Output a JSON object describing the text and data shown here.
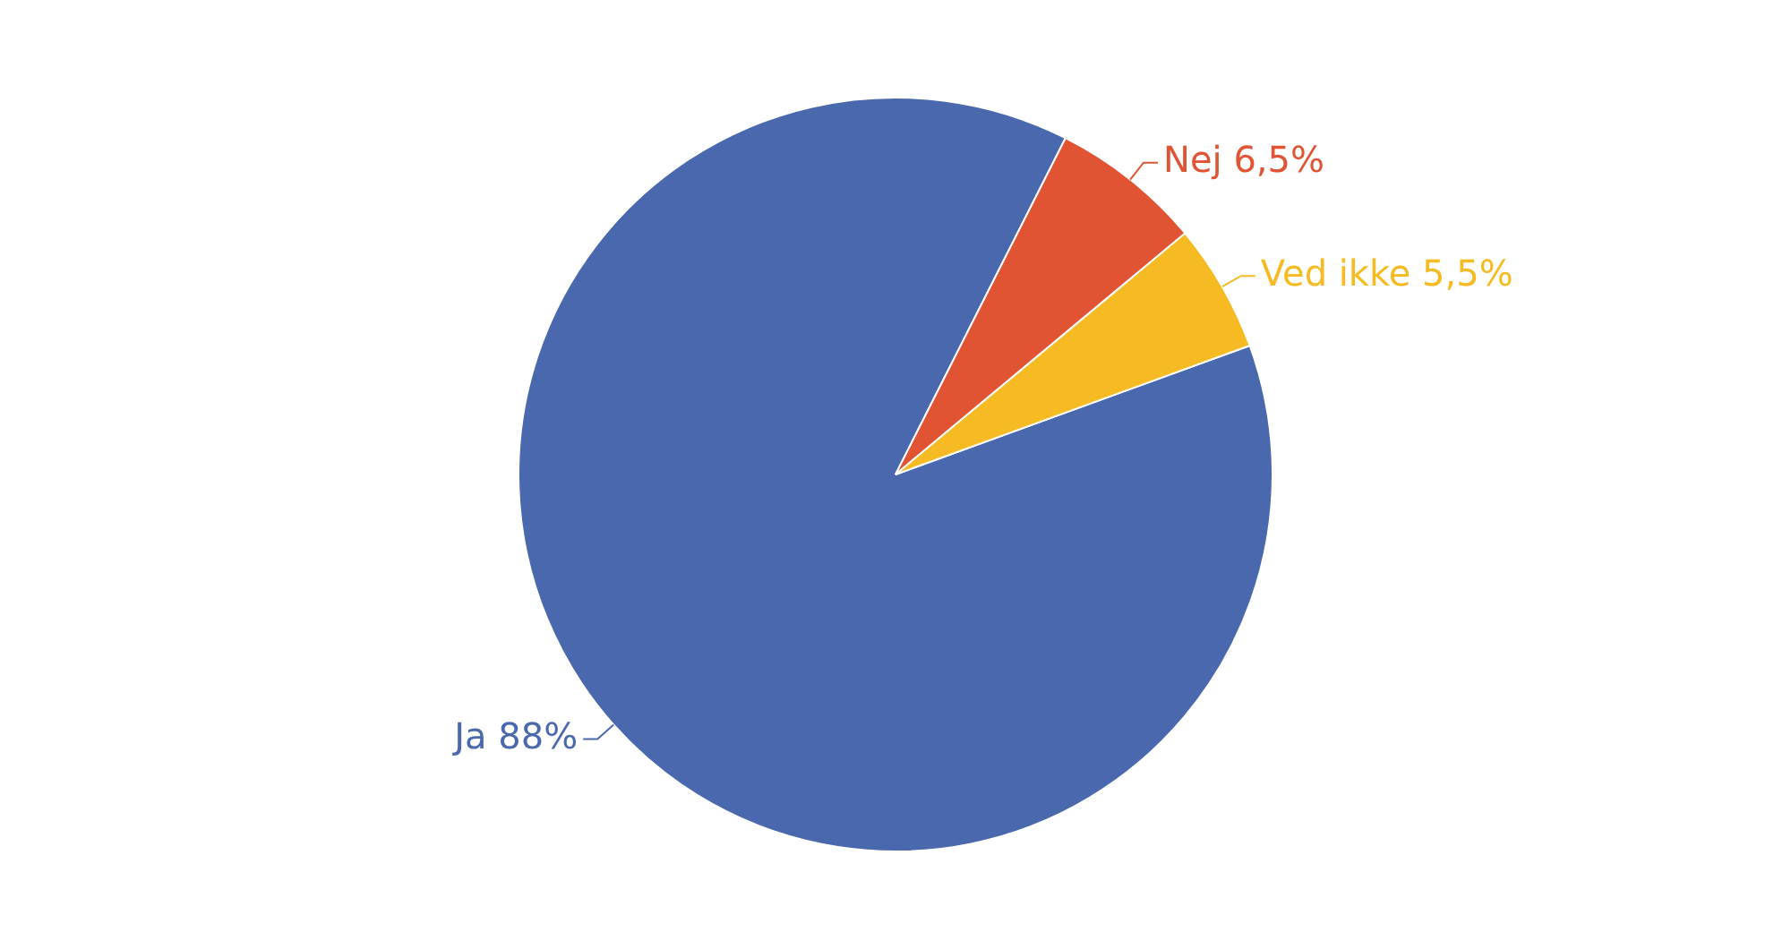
{
  "chart_data": {
    "type": "pie",
    "categories": [
      "Ja",
      "Nej",
      "Ved ikke"
    ],
    "values": [
      88,
      6.5,
      5.5
    ],
    "value_labels": [
      "88%",
      "6,5%",
      "5,5%"
    ],
    "colors": [
      "#4a68ad",
      "#e05434",
      "#f6bb22"
    ]
  }
}
